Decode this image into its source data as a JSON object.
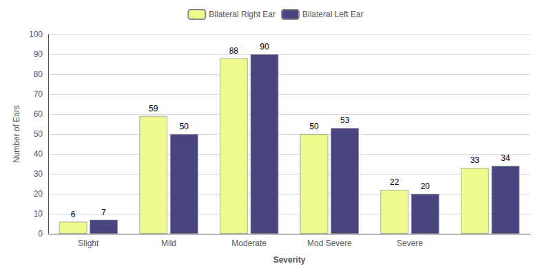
{
  "chart_data": {
    "type": "bar",
    "categories": [
      "Slight",
      "Mild",
      "Moderate",
      "Mod Severe",
      "Severe",
      null
    ],
    "series": [
      {
        "name": "Bilateral Right Ear",
        "color": "#eefa8c",
        "values": [
          6,
          59,
          88,
          50,
          22,
          33
        ]
      },
      {
        "name": "Bilateral Left Ear",
        "color": "#4a4480",
        "values": [
          7,
          50,
          90,
          53,
          20,
          34
        ]
      }
    ],
    "xlabel": "Severity",
    "ylabel": "Number of Ears",
    "ylim": [
      0,
      100
    ],
    "yticks": [
      0,
      10,
      20,
      30,
      40,
      50,
      60,
      70,
      80,
      90,
      100
    ],
    "grid": true,
    "legend": "top",
    "data_labels": true
  }
}
